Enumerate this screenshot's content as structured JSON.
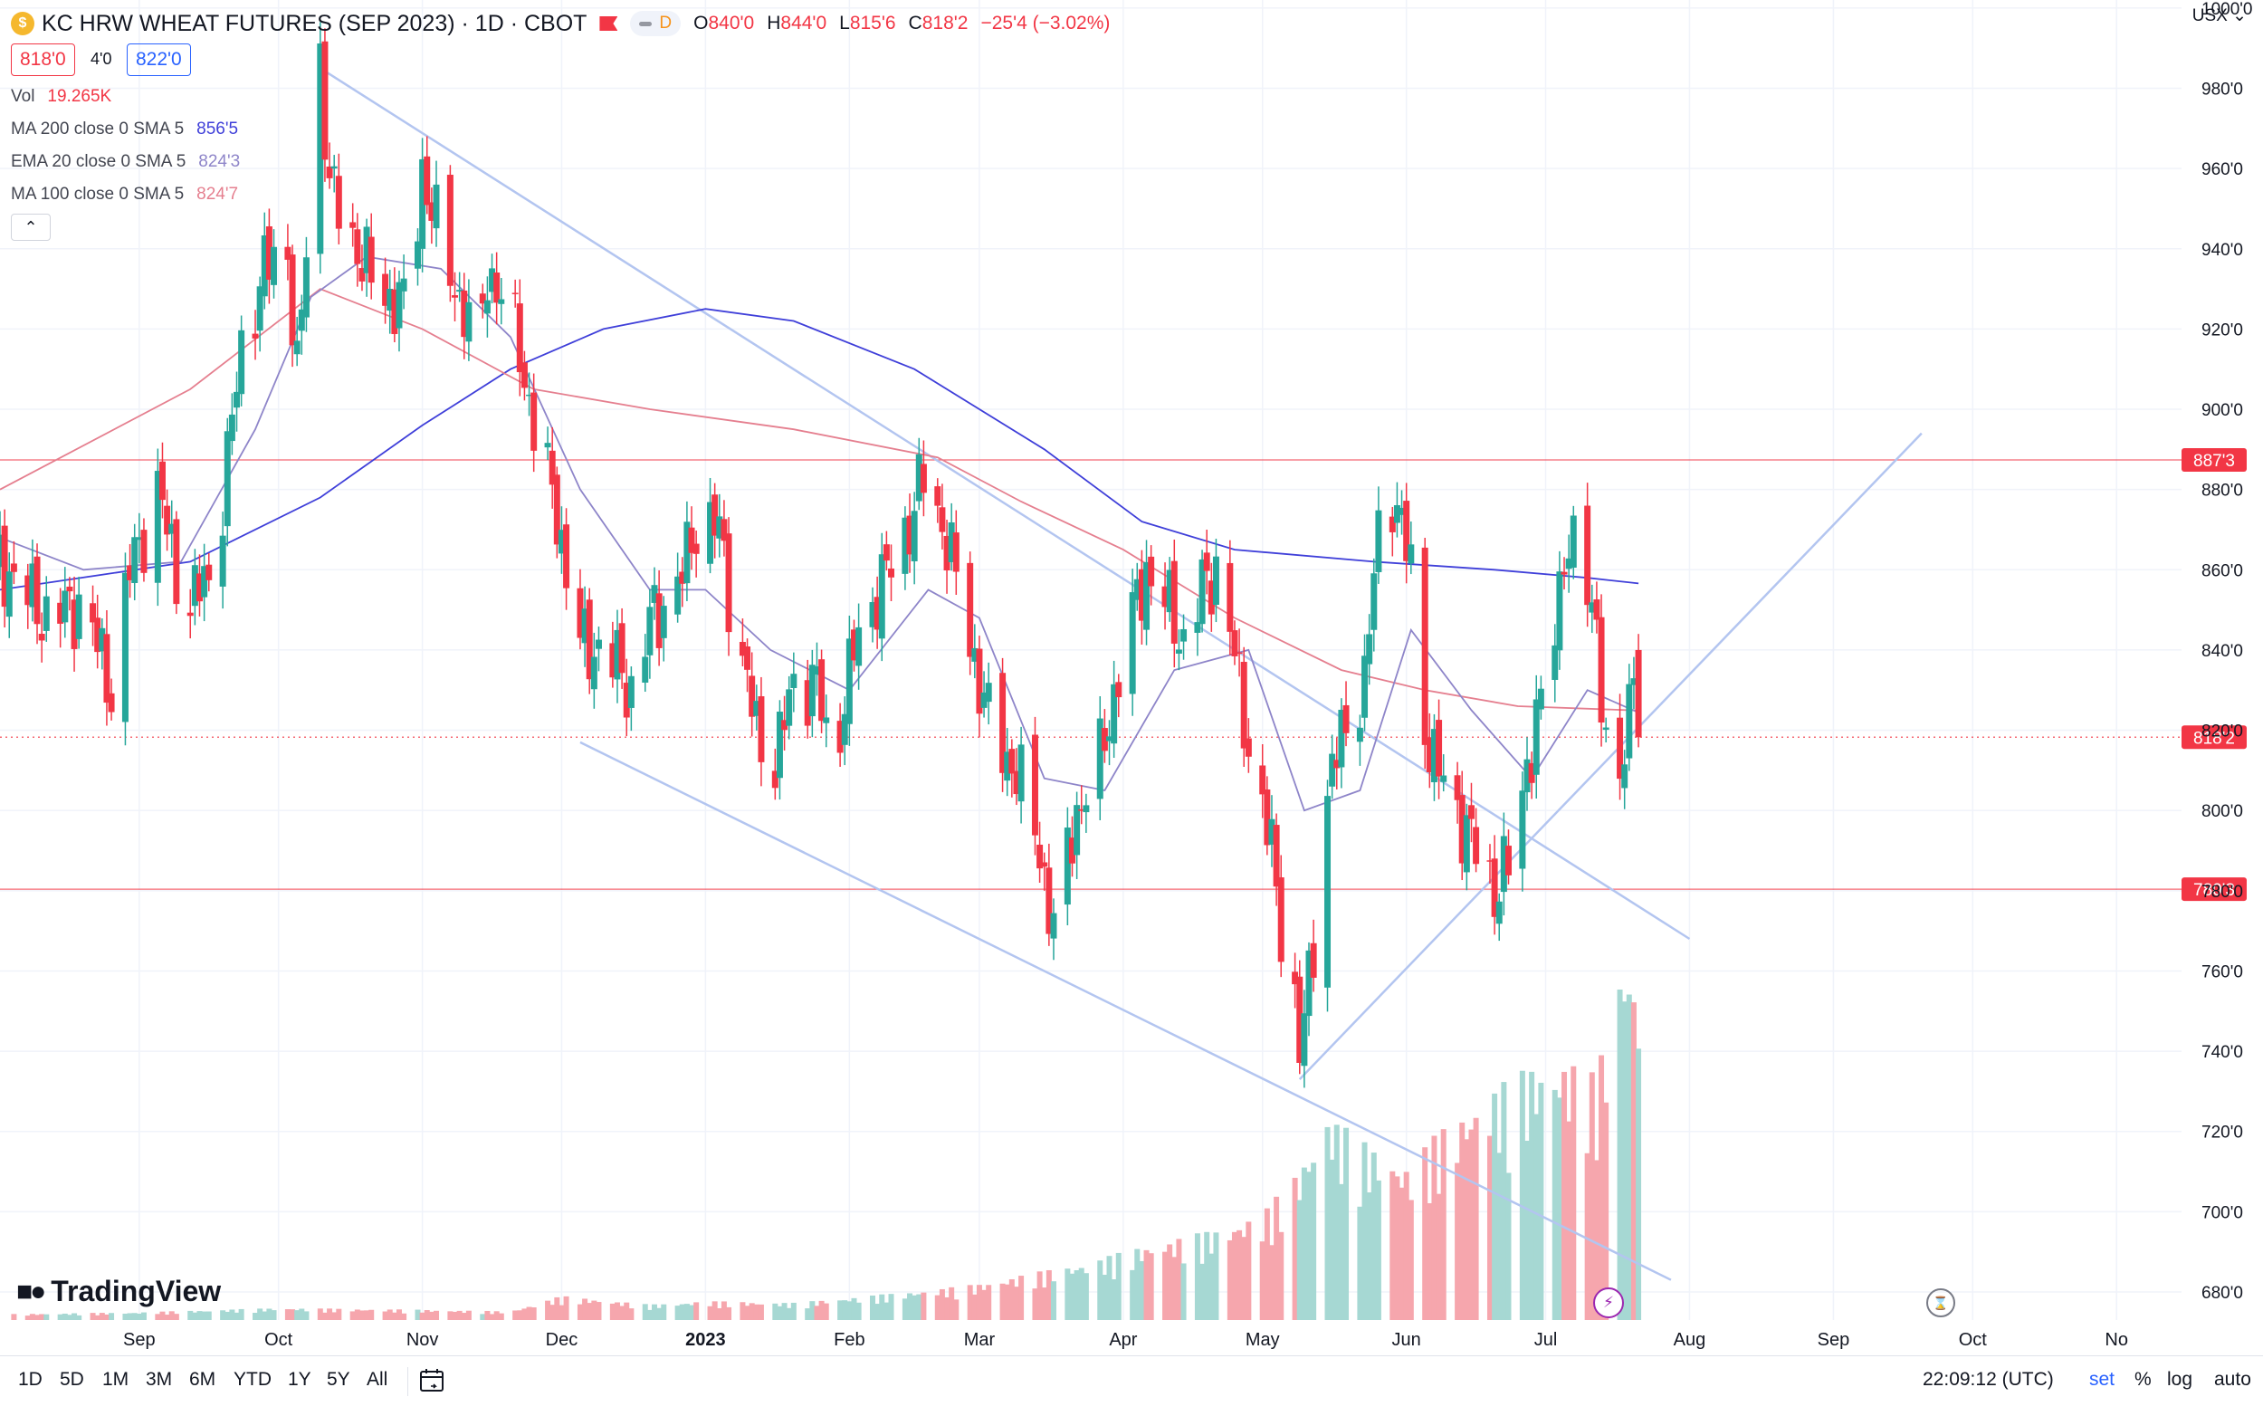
{
  "header": {
    "symbol_title": "KC HRW WHEAT FUTURES (SEP 2023) · 1D · CBOT",
    "delay_badge": "D",
    "ohlc": {
      "o_label": "O",
      "o": "840'0",
      "h_label": "H",
      "h": "844'0",
      "l_label": "L",
      "l": "815'6",
      "c_label": "C",
      "c": "818'2"
    },
    "change": "−25'4 (−3.02%)",
    "sell_price": "818'0",
    "spread": "4'0",
    "buy_price": "822'0",
    "currency": "USX"
  },
  "legend": [
    {
      "name": "Vol",
      "value": "19.265K",
      "color": "#f23645"
    },
    {
      "name": "MA 200 close 0 SMA 5",
      "value": "856'5",
      "color": "#3f3fd9"
    },
    {
      "name": "EMA 20 close 0 SMA 5",
      "value": "824'3",
      "color": "#8e85c9"
    },
    {
      "name": "MA 100 close 0 SMA 5",
      "value": "824'7",
      "color": "#e57f8f"
    }
  ],
  "collapse_icon": "chevron-up-icon",
  "colors": {
    "up": "#26a69a",
    "down": "#f23645",
    "vol_up": "#a6d8d3",
    "vol_down": "#f6a6ad",
    "trend": "#b3c5f0"
  },
  "branding": "TradingView",
  "toolbar": {
    "timeframes": [
      "1D",
      "5D",
      "1M",
      "3M",
      "6M",
      "YTD",
      "1Y",
      "5Y",
      "All"
    ],
    "clock": "22:09:12 (UTC)",
    "options": [
      "set",
      "%",
      "log",
      "auto"
    ],
    "active_option": "set"
  },
  "chart_data": {
    "type": "candlestick",
    "instrument": "KC HRW WHEAT FUTURES (SEP 2023)",
    "interval": "1D",
    "exchange": "CBOT",
    "price_unit": "USX (cents/bushel)",
    "y_axis_ticks": [
      "1000'0",
      "980'0",
      "960'0",
      "940'0",
      "920'0",
      "900'0",
      "880'0",
      "860'0",
      "840'0",
      "820'0",
      "800'0",
      "780'0",
      "760'0",
      "740'0",
      "720'0",
      "700'0",
      "680'0"
    ],
    "y_axis_values": [
      1000,
      980,
      960,
      940,
      920,
      900,
      880,
      860,
      840,
      820,
      800,
      780,
      760,
      740,
      720,
      700,
      680
    ],
    "ylim": [
      673,
      1002
    ],
    "x_axis_ticks": [
      {
        "label": "Sep",
        "date": "2022-09-01"
      },
      {
        "label": "Oct",
        "date": "2022-10-01"
      },
      {
        "label": "Nov",
        "date": "2022-11-01"
      },
      {
        "label": "Dec",
        "date": "2022-12-01"
      },
      {
        "label": "2023",
        "date": "2023-01-01"
      },
      {
        "label": "Feb",
        "date": "2023-02-01"
      },
      {
        "label": "Mar",
        "date": "2023-03-01"
      },
      {
        "label": "Apr",
        "date": "2023-04-01"
      },
      {
        "label": "May",
        "date": "2023-05-01"
      },
      {
        "label": "Jun",
        "date": "2023-06-01"
      },
      {
        "label": "Jul",
        "date": "2023-07-01"
      },
      {
        "label": "Aug",
        "date": "2023-08-01"
      },
      {
        "label": "Sep",
        "date": "2023-09-01"
      },
      {
        "label": "Oct",
        "date": "2023-10-01"
      },
      {
        "label": "No",
        "date": "2023-11-01"
      }
    ],
    "xlim": [
      "2022-08-02",
      "2023-11-15"
    ],
    "price_lines": [
      {
        "price": 887.375,
        "label": "887'3",
        "color": "#f23645",
        "style": "solid"
      },
      {
        "price": 780.375,
        "label": "780'3",
        "color": "#f23645",
        "style": "solid"
      },
      {
        "price": 818.25,
        "label": "818'2",
        "color": "#f23645",
        "style": "dotted"
      }
    ],
    "price_path": [
      [
        "2022-08-02",
        862
      ],
      [
        "2022-08-12",
        848
      ],
      [
        "2022-08-20",
        852
      ],
      [
        "2022-08-26",
        830
      ],
      [
        "2022-08-30",
        860
      ],
      [
        "2022-09-05",
        880
      ],
      [
        "2022-09-11",
        850
      ],
      [
        "2022-09-17",
        860
      ],
      [
        "2022-09-23",
        915
      ],
      [
        "2022-09-28",
        935
      ],
      [
        "2022-10-03",
        940
      ],
      [
        "2022-10-05",
        908
      ],
      [
        "2022-10-08",
        956
      ],
      [
        "2022-10-10",
        988
      ],
      [
        "2022-10-12",
        955
      ],
      [
        "2022-10-16",
        945
      ],
      [
        "2022-10-22",
        930
      ],
      [
        "2022-10-29",
        925
      ],
      [
        "2022-11-01",
        960
      ],
      [
        "2022-11-05",
        940
      ],
      [
        "2022-11-10",
        925
      ],
      [
        "2022-11-13",
        908
      ],
      [
        "2022-11-15",
        935
      ],
      [
        "2022-11-18",
        928
      ],
      [
        "2022-11-22",
        915
      ],
      [
        "2022-11-25",
        895
      ],
      [
        "2022-11-30",
        875
      ],
      [
        "2022-12-04",
        842
      ],
      [
        "2022-12-09",
        840
      ],
      [
        "2022-12-14",
        835
      ],
      [
        "2022-12-17",
        826
      ],
      [
        "2022-12-20",
        848
      ],
      [
        "2022-12-26",
        855
      ],
      [
        "2022-12-30",
        872
      ],
      [
        "2023-01-04",
        870
      ],
      [
        "2023-01-07",
        848
      ],
      [
        "2023-01-12",
        820
      ],
      [
        "2023-01-16",
        812
      ],
      [
        "2023-01-20",
        832
      ],
      [
        "2023-01-25",
        832
      ],
      [
        "2023-01-28",
        810
      ],
      [
        "2023-02-02",
        840
      ],
      [
        "2023-02-07",
        855
      ],
      [
        "2023-02-12",
        865
      ],
      [
        "2023-02-17",
        883
      ],
      [
        "2023-02-22",
        868
      ],
      [
        "2023-02-27",
        842
      ],
      [
        "2023-03-04",
        818
      ],
      [
        "2023-03-09",
        810
      ],
      [
        "2023-03-14",
        790
      ],
      [
        "2023-03-17",
        770
      ],
      [
        "2023-03-22",
        800
      ],
      [
        "2023-03-27",
        812
      ],
      [
        "2023-04-01",
        840
      ],
      [
        "2023-04-06",
        860
      ],
      [
        "2023-04-10",
        852
      ],
      [
        "2023-04-14",
        842
      ],
      [
        "2023-04-18",
        855
      ],
      [
        "2023-04-22",
        862
      ],
      [
        "2023-04-26",
        830
      ],
      [
        "2023-04-29",
        810
      ],
      [
        "2023-05-03",
        790
      ],
      [
        "2023-05-05",
        772
      ],
      [
        "2023-05-08",
        752
      ],
      [
        "2023-05-09",
        738
      ],
      [
        "2023-05-12",
        768
      ],
      [
        "2023-05-15",
        805
      ],
      [
        "2023-05-19",
        822
      ],
      [
        "2023-05-23",
        832
      ],
      [
        "2023-05-26",
        870
      ],
      [
        "2023-05-29",
        880
      ],
      [
        "2023-06-02",
        860
      ],
      [
        "2023-06-04",
        826
      ],
      [
        "2023-06-07",
        812
      ],
      [
        "2023-06-12",
        800
      ],
      [
        "2023-06-16",
        790
      ],
      [
        "2023-06-20",
        780
      ],
      [
        "2023-06-24",
        788
      ],
      [
        "2023-06-27",
        812
      ],
      [
        "2023-07-02",
        835
      ],
      [
        "2023-07-05",
        866
      ],
      [
        "2023-07-08",
        862
      ],
      [
        "2023-07-12",
        848
      ],
      [
        "2023-07-14",
        812
      ],
      [
        "2023-07-17",
        805
      ],
      [
        "2023-07-20",
        840
      ],
      [
        "2023-07-21",
        818.25
      ]
    ],
    "moving_averages": [
      {
        "name": "MA 200",
        "color": "#3f3fd9",
        "points": [
          [
            "2022-08-02",
            855
          ],
          [
            "2022-09-12",
            862
          ],
          [
            "2022-10-10",
            878
          ],
          [
            "2022-11-01",
            896
          ],
          [
            "2022-11-20",
            910
          ],
          [
            "2022-12-10",
            920
          ],
          [
            "2023-01-01",
            925
          ],
          [
            "2023-01-20",
            922
          ],
          [
            "2023-02-15",
            910
          ],
          [
            "2023-03-15",
            890
          ],
          [
            "2023-04-05",
            872
          ],
          [
            "2023-04-25",
            865
          ],
          [
            "2023-05-25",
            862
          ],
          [
            "2023-06-20",
            860
          ],
          [
            "2023-07-10",
            858
          ],
          [
            "2023-07-21",
            856.6
          ]
        ]
      },
      {
        "name": "MA 100",
        "color": "#e57f8f",
        "points": [
          [
            "2022-08-02",
            880
          ],
          [
            "2022-09-12",
            905
          ],
          [
            "2022-10-10",
            930
          ],
          [
            "2022-11-01",
            920
          ],
          [
            "2022-11-25",
            905
          ],
          [
            "2022-12-20",
            900
          ],
          [
            "2023-01-20",
            895
          ],
          [
            "2023-02-20",
            888
          ],
          [
            "2023-03-10",
            877
          ],
          [
            "2023-04-01",
            865
          ],
          [
            "2023-04-25",
            848
          ],
          [
            "2023-05-18",
            835
          ],
          [
            "2023-06-05",
            830
          ],
          [
            "2023-06-25",
            826
          ],
          [
            "2023-07-21",
            824.9
          ]
        ]
      },
      {
        "name": "EMA 20",
        "color": "#8e85c9",
        "points": [
          [
            "2022-08-02",
            868
          ],
          [
            "2022-08-20",
            860
          ],
          [
            "2022-09-10",
            862
          ],
          [
            "2022-09-26",
            895
          ],
          [
            "2022-10-08",
            928
          ],
          [
            "2022-10-20",
            938
          ],
          [
            "2022-11-05",
            935
          ],
          [
            "2022-11-20",
            918
          ],
          [
            "2022-12-05",
            880
          ],
          [
            "2022-12-20",
            855
          ],
          [
            "2023-01-01",
            855
          ],
          [
            "2023-01-15",
            840
          ],
          [
            "2023-02-01",
            830
          ],
          [
            "2023-02-18",
            855
          ],
          [
            "2023-03-01",
            848
          ],
          [
            "2023-03-15",
            808
          ],
          [
            "2023-03-28",
            805
          ],
          [
            "2023-04-12",
            835
          ],
          [
            "2023-04-28",
            840
          ],
          [
            "2023-05-10",
            800
          ],
          [
            "2023-05-22",
            805
          ],
          [
            "2023-06-02",
            845
          ],
          [
            "2023-06-15",
            825
          ],
          [
            "2023-06-28",
            808
          ],
          [
            "2023-07-10",
            830
          ],
          [
            "2023-07-21",
            824.4
          ]
        ]
      }
    ],
    "trendlines": [
      {
        "from": [
          "2022-10-10",
          985
        ],
        "to": [
          "2023-08-01",
          768
        ]
      },
      {
        "from": [
          "2022-12-05",
          817
        ],
        "to": [
          "2023-07-28",
          683
        ]
      },
      {
        "from": [
          "2023-05-09",
          733
        ],
        "to": [
          "2023-09-20",
          894
        ]
      }
    ],
    "volume": {
      "unit": "contracts",
      "scale_note": "relative",
      "max_value": 22000,
      "points": [
        [
          "2022-08-05",
          350
        ],
        [
          "2022-09-01",
          450
        ],
        [
          "2022-10-01",
          700
        ],
        [
          "2022-11-01",
          600
        ],
        [
          "2022-11-20",
          500
        ],
        [
          "2022-12-01",
          1400
        ],
        [
          "2022-12-20",
          900
        ],
        [
          "2023-01-01",
          1100
        ],
        [
          "2023-01-20",
          1000
        ],
        [
          "2023-02-01",
          1300
        ],
        [
          "2023-02-20",
          1800
        ],
        [
          "2023-03-01",
          2100
        ],
        [
          "2023-03-10",
          2600
        ],
        [
          "2023-03-25",
          3400
        ],
        [
          "2023-04-05",
          4300
        ],
        [
          "2023-04-20",
          5200
        ],
        [
          "2023-05-01",
          6200
        ],
        [
          "2023-05-08",
          8400
        ],
        [
          "2023-05-15",
          12000
        ],
        [
          "2023-05-22",
          10500
        ],
        [
          "2023-06-01",
          9000
        ],
        [
          "2023-06-10",
          11500
        ],
        [
          "2023-06-20",
          13500
        ],
        [
          "2023-06-28",
          14800
        ],
        [
          "2023-07-05",
          15200
        ],
        [
          "2023-07-12",
          14200
        ],
        [
          "2023-07-18",
          22000
        ],
        [
          "2023-07-21",
          19265
        ]
      ]
    }
  }
}
